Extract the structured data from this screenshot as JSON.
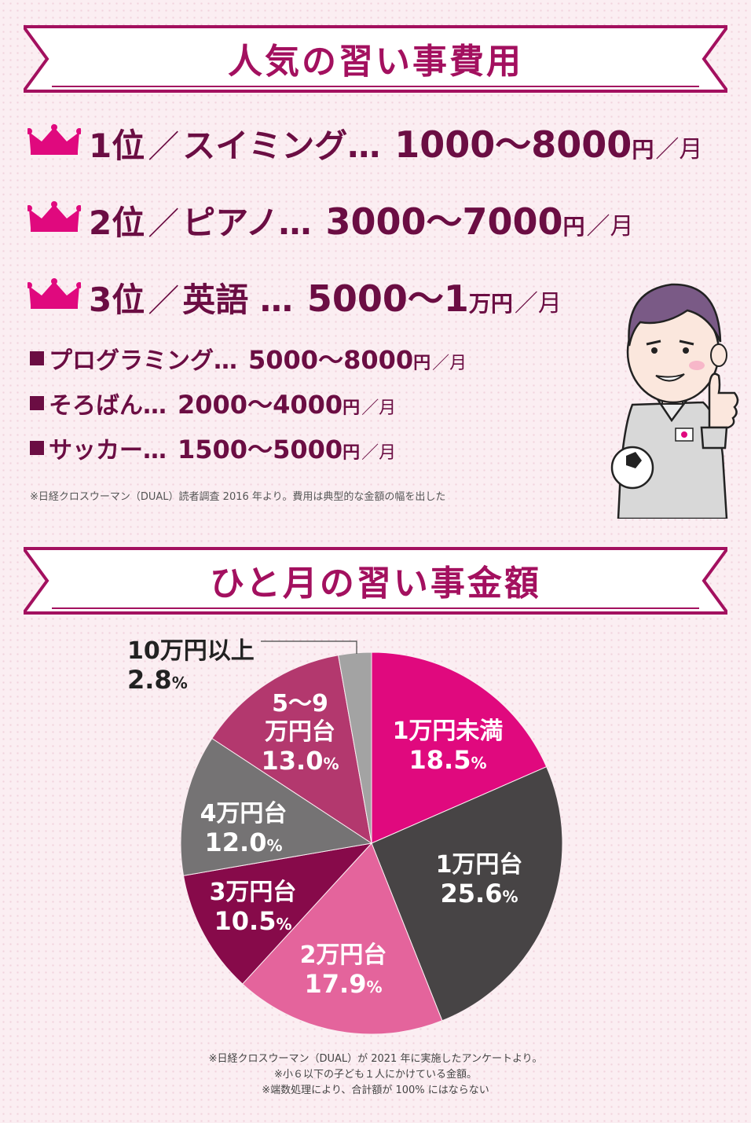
{
  "section1": {
    "title": "人気の習い事費用",
    "ranks": [
      {
        "rank": "1位",
        "sep": "／",
        "name": "スイミング…",
        "range": "1000～8000",
        "unit": "円",
        "per": "／月"
      },
      {
        "rank": "2位",
        "sep": "／",
        "name": "ピアノ…",
        "range": "3000～7000",
        "unit": "円",
        "per": "／月"
      },
      {
        "rank": "3位",
        "sep": "／",
        "name": "英語 …",
        "range": "5000～1",
        "unit": "万円",
        "per": "／月"
      }
    ],
    "items": [
      {
        "name": "プログラミング…",
        "range": "5000～8000",
        "unit": "円",
        "per": "／月"
      },
      {
        "name": "そろばん…",
        "range": "2000～4000",
        "unit": "円",
        "per": "／月"
      },
      {
        "name": "サッカー…",
        "range": "1500～5000",
        "unit": "円",
        "per": "／月"
      }
    ],
    "note": "※日経クロスウーマン（DUAL）読者調査 2016 年より。費用は典型的な金額の幅を出した",
    "icons": [
      "crown-icon",
      "bullet-square-icon",
      "boy-thumbs-up-illustration"
    ]
  },
  "section2": {
    "title": "ひと月の習い事金額",
    "footnotes": [
      "※日経クロスウーマン（DUAL）が 2021 年に実施したアンケートより。",
      "※小６以下の子ども１人にかけている金額。",
      "※端数処理により、合計額が 100% にはならない"
    ]
  },
  "chart_data": {
    "type": "pie",
    "unit": "%",
    "slices": [
      {
        "label": "1万円未満",
        "value": 18.5,
        "display": "18.5",
        "color": "#e0097e"
      },
      {
        "label": "1万円台",
        "value": 25.6,
        "display": "25.6",
        "color": "#474445"
      },
      {
        "label": "2万円台",
        "value": 17.9,
        "display": "17.9",
        "color": "#e4649c"
      },
      {
        "label": "3万円台",
        "value": 10.5,
        "display": "10.5",
        "color": "#870a4a"
      },
      {
        "label": "4万円台",
        "value": 12.0,
        "display": "12.0",
        "color": "#757374"
      },
      {
        "label": "5～9\n万円台",
        "value": 13.0,
        "display": "13.0",
        "color": "#b3386e"
      },
      {
        "label": "10万円以上",
        "value": 2.8,
        "display": "2.8",
        "color": "#a3a3a3"
      }
    ]
  },
  "colors": {
    "accent": "#a3105f",
    "dark_text": "#6b0d43",
    "banner_border": "#a3105f"
  }
}
